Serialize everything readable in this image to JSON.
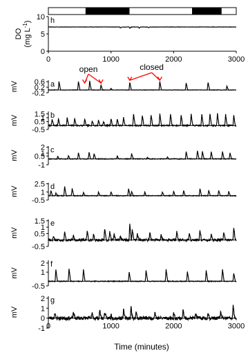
{
  "chart_data": {
    "type": "line",
    "x_unit_label": "Time (minutes)",
    "x_ticks": [
      "0",
      "1000",
      "2000",
      "3000"
    ],
    "xlim": [
      0,
      3000
    ],
    "light_dark_bar": {
      "segments": [
        {
          "start": 0,
          "end": 600,
          "state": "light"
        },
        {
          "start": 600,
          "end": 1290,
          "state": "dark"
        },
        {
          "start": 1290,
          "end": 2300,
          "state": "light"
        },
        {
          "start": 2300,
          "end": 2760,
          "state": "dark"
        },
        {
          "start": 2760,
          "end": 3000,
          "state": "light"
        }
      ]
    },
    "annotations": {
      "open": {
        "label": "open",
        "targets_x": [
          580,
          840
        ]
      },
      "closed": {
        "label": "closed",
        "targets_x": [
          1300,
          1780
        ]
      },
      "color": "#ff0000"
    },
    "panels": [
      {
        "letter": "h",
        "ylabel_line1": "DO",
        "ylabel_line2": "(mg L",
        "ylabel_sup": "-1",
        "ylabel_close": ")",
        "ylim": [
          0,
          10
        ],
        "yticks": [
          "0",
          "5",
          "10"
        ],
        "ytick_values": [
          0,
          5,
          10
        ],
        "baseline": 7.0,
        "events": [
          [
            1150,
            -0.3
          ],
          [
            1300,
            -0.4
          ],
          [
            1450,
            -0.3
          ],
          [
            1600,
            -0.2
          ]
        ],
        "noise": 0.05,
        "seed": 3
      },
      {
        "letter": "a",
        "ylabel": "mV",
        "ylim": [
          -0.2,
          0.7
        ],
        "yticks": [
          "-0.2",
          "0.2",
          "0.6"
        ],
        "ytick_values": [
          -0.2,
          0.2,
          0.6
        ],
        "baseline": 0.0,
        "events": [
          [
            170,
            0.6
          ],
          [
            480,
            0.62
          ],
          [
            660,
            0.65
          ],
          [
            840,
            0.35
          ],
          [
            1000,
            0.12
          ],
          [
            1300,
            0.55
          ],
          [
            1780,
            0.62
          ],
          [
            2200,
            0.5
          ],
          [
            2550,
            0.55
          ],
          [
            2850,
            0.28
          ]
        ],
        "noise": 0.015,
        "seed": 5
      },
      {
        "letter": "b",
        "ylabel": "mV",
        "ylim": [
          -0.5,
          1.8
        ],
        "yticks": [
          "-0.5",
          "0.5",
          "1",
          "1.5"
        ],
        "ytick_values": [
          -0.5,
          0.5,
          1,
          1.5
        ],
        "baseline": 0.0,
        "events": [
          [
            60,
            0.8
          ],
          [
            160,
            0.9
          ],
          [
            300,
            1.0
          ],
          [
            420,
            0.9
          ],
          [
            580,
            0.8
          ],
          [
            700,
            0.6
          ],
          [
            800,
            0.7
          ],
          [
            880,
            0.5
          ],
          [
            1000,
            0.9
          ],
          [
            1100,
            0.8
          ],
          [
            1200,
            1.0
          ],
          [
            1360,
            1.5
          ],
          [
            1500,
            1.3
          ],
          [
            1640,
            1.4
          ],
          [
            1780,
            1.5
          ],
          [
            1950,
            1.5
          ],
          [
            2120,
            1.4
          ],
          [
            2280,
            1.5
          ],
          [
            2450,
            1.4
          ],
          [
            2580,
            1.5
          ],
          [
            2700,
            1.5
          ],
          [
            2830,
            1.4
          ],
          [
            2960,
            1.3
          ]
        ],
        "noise": 0.08,
        "seed": 7
      },
      {
        "letter": "c",
        "ylabel": "mV",
        "ylim": [
          -1,
          2.2
        ],
        "yticks": [
          "-1",
          "0.5",
          "1",
          "2"
        ],
        "ytick_values": [
          -1,
          0.5,
          1,
          2
        ],
        "baseline": 0.0,
        "events": [
          [
            150,
            0.4
          ],
          [
            320,
            0.6
          ],
          [
            480,
            1.0
          ],
          [
            650,
            1.1
          ],
          [
            730,
            0.9
          ],
          [
            1100,
            0.5
          ],
          [
            1330,
            0.9
          ],
          [
            1580,
            0.3
          ],
          [
            1900,
            0.3
          ],
          [
            2200,
            1.3
          ],
          [
            2380,
            1.4
          ],
          [
            2460,
            1.3
          ],
          [
            2600,
            1.2
          ],
          [
            2780,
            1.2
          ],
          [
            2900,
            1.0
          ]
        ],
        "noise": 0.06,
        "seed": 11
      },
      {
        "letter": "d",
        "ylabel": "mV",
        "ylim": [
          -0.5,
          2.7
        ],
        "yticks": [
          "-0.5",
          "1",
          "2.5"
        ],
        "ytick_values": [
          -0.5,
          1,
          2.5
        ],
        "baseline": 0.3,
        "events": [
          [
            40,
            1.0
          ],
          [
            120,
            0.5
          ],
          [
            260,
            1.7
          ],
          [
            380,
            1.3
          ],
          [
            560,
            0.6
          ],
          [
            800,
            0.7
          ],
          [
            1000,
            0.7
          ],
          [
            1280,
            1.3
          ],
          [
            1330,
            0.8
          ],
          [
            1540,
            0.7
          ],
          [
            1820,
            0.7
          ],
          [
            2000,
            0.8
          ],
          [
            2160,
            1.0
          ],
          [
            2420,
            1.3
          ],
          [
            2560,
            1.0
          ],
          [
            2720,
            1.0
          ],
          [
            2880,
            0.8
          ]
        ],
        "noise": 0.06,
        "seed": 13
      },
      {
        "letter": "e",
        "ylabel": "mV",
        "ylim": [
          -0.5,
          1.6
        ],
        "yticks": [
          "-0.5",
          "0.5",
          "1",
          "1.5"
        ],
        "ytick_values": [
          -0.5,
          0.5,
          1,
          1.5
        ],
        "baseline": 0.0,
        "events": [
          [
            80,
            0.3
          ],
          [
            260,
            0.6
          ],
          [
            400,
            0.3
          ],
          [
            620,
            0.7
          ],
          [
            720,
            0.4
          ],
          [
            900,
            0.9
          ],
          [
            980,
            0.6
          ],
          [
            1050,
            0.4
          ],
          [
            1150,
            0.3
          ],
          [
            1300,
            1.2
          ],
          [
            1340,
            0.8
          ],
          [
            1420,
            0.5
          ],
          [
            1620,
            0.6
          ],
          [
            1800,
            0.4
          ],
          [
            2050,
            0.7
          ],
          [
            2250,
            0.6
          ],
          [
            2420,
            0.8
          ],
          [
            2600,
            0.5
          ],
          [
            2800,
            0.6
          ],
          [
            2960,
            1.0
          ]
        ],
        "noise": 0.09,
        "seed": 17
      },
      {
        "letter": "f",
        "ylabel": "mV",
        "ylim": [
          -0.5,
          2.3
        ],
        "yticks": [
          "-0.5",
          "1",
          "2"
        ],
        "ytick_values": [
          -0.5,
          1,
          2
        ],
        "baseline": 0.0,
        "events": [
          [
            120,
            1.3
          ],
          [
            330,
            1.4
          ],
          [
            560,
            1.3
          ],
          [
            1290,
            1.0
          ],
          [
            1560,
            1.2
          ],
          [
            1880,
            1.3
          ],
          [
            2220,
            1.1
          ],
          [
            2520,
            1.2
          ],
          [
            2780,
            1.3
          ],
          [
            2960,
            0.9
          ]
        ],
        "noise": 0.04,
        "seed": 19
      },
      {
        "letter": "g",
        "ylabel": "mV",
        "ylim": [
          -1,
          2.2
        ],
        "yticks": [
          "-1",
          "0",
          "1",
          "2"
        ],
        "ytick_values": [
          -1,
          0,
          1,
          2
        ],
        "baseline": 0.0,
        "events": [
          [
            100,
            0.5
          ],
          [
            400,
            0.6
          ],
          [
            700,
            0.5
          ],
          [
            820,
            0.8
          ],
          [
            900,
            0.6
          ],
          [
            1000,
            0.4
          ],
          [
            1200,
            0.8
          ],
          [
            1320,
            1.1
          ],
          [
            1400,
            0.6
          ],
          [
            1700,
            0.6
          ],
          [
            2000,
            0.5
          ],
          [
            2150,
            0.8
          ],
          [
            2350,
            0.5
          ],
          [
            2550,
            0.5
          ],
          [
            2750,
            0.6
          ],
          [
            2950,
            1.2
          ]
        ],
        "noise": 0.18,
        "seed": 23
      }
    ]
  }
}
